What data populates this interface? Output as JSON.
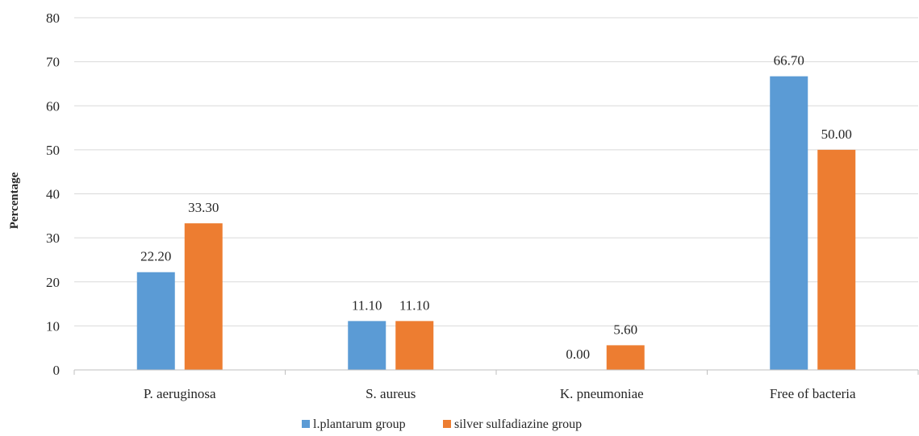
{
  "chart_data": {
    "type": "bar",
    "title": "",
    "xlabel": "",
    "ylabel": "Percentage",
    "ylim": [
      0,
      80
    ],
    "yticks": [
      0,
      10,
      20,
      30,
      40,
      50,
      60,
      70,
      80
    ],
    "categories": [
      "P. aeruginosa",
      "S. aureus",
      "K. pneumoniae",
      "Free of bacteria"
    ],
    "series": [
      {
        "name": "l.plantarum group",
        "color": "#5B9BD5",
        "values": [
          22.2,
          11.1,
          0.0,
          66.7
        ],
        "labels": [
          "22.20",
          "11.10",
          "0.00",
          "66.70"
        ]
      },
      {
        "name": "silver sulfadiazine group",
        "color": "#ED7D31",
        "values": [
          33.3,
          11.1,
          5.6,
          50.0
        ],
        "labels": [
          "33.30",
          "11.10",
          "5.60",
          "50.00"
        ]
      }
    ],
    "grid": true,
    "legend_position": "bottom"
  }
}
